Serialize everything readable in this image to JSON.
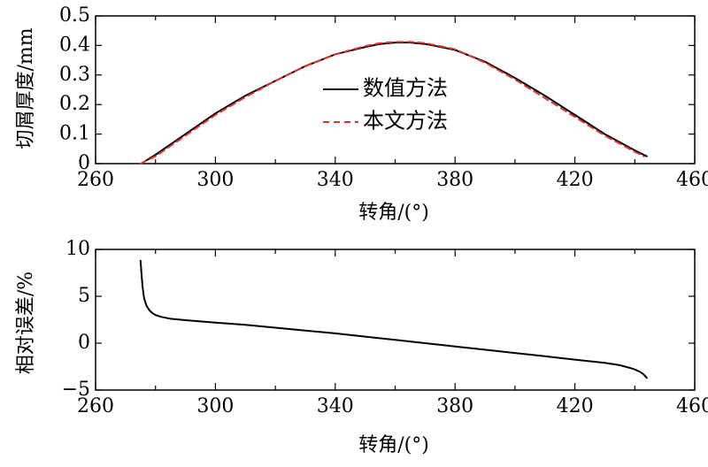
{
  "chart_data": [
    {
      "type": "line",
      "title": "",
      "xlabel": "转角/(°)",
      "ylabel": "切屑厚度/mm",
      "xlim": [
        260,
        460
      ],
      "ylim": [
        0,
        0.5
      ],
      "xticks": [
        "260",
        "300",
        "340",
        "380",
        "420",
        "460"
      ],
      "yticks": [
        "0",
        "0.1",
        "0.2",
        "0.3",
        "0.4",
        "0.5"
      ],
      "legend_position": "center",
      "series": [
        {
          "name": "数值方法",
          "color": "#000000",
          "style": "solid",
          "x": [
            276,
            280,
            290,
            300,
            310,
            320,
            330,
            340,
            350,
            355,
            360,
            365,
            370,
            380,
            390,
            400,
            410,
            420,
            430,
            440,
            444
          ],
          "y": [
            0.005,
            0.03,
            0.1,
            0.17,
            0.23,
            0.28,
            0.33,
            0.37,
            0.395,
            0.405,
            0.41,
            0.41,
            0.405,
            0.385,
            0.345,
            0.29,
            0.23,
            0.165,
            0.1,
            0.045,
            0.025
          ]
        },
        {
          "name": "本文方法",
          "color": "#e03030",
          "style": "dashed",
          "x": [
            275,
            280,
            290,
            300,
            310,
            320,
            330,
            340,
            350,
            355,
            360,
            365,
            370,
            380,
            390,
            400,
            410,
            420,
            430,
            440,
            443
          ],
          "y": [
            0.0,
            0.025,
            0.095,
            0.165,
            0.225,
            0.28,
            0.33,
            0.37,
            0.398,
            0.408,
            0.412,
            0.412,
            0.408,
            0.387,
            0.342,
            0.285,
            0.222,
            0.158,
            0.095,
            0.04,
            0.025
          ]
        }
      ]
    },
    {
      "type": "line",
      "title": "",
      "xlabel": "转角/(°)",
      "ylabel": "相对误差/%",
      "xlim": [
        260,
        460
      ],
      "ylim": [
        -5,
        10
      ],
      "xticks": [
        "260",
        "300",
        "340",
        "380",
        "420",
        "460"
      ],
      "yticks": [
        "10",
        "5",
        "0",
        "−5"
      ],
      "series": [
        {
          "name": "",
          "color": "#000000",
          "style": "solid",
          "x": [
            275,
            275.3,
            275.7,
            276.2,
            277,
            278,
            279,
            280,
            282,
            285,
            290,
            300,
            310,
            320,
            330,
            340,
            350,
            360,
            370,
            380,
            390,
            400,
            410,
            420,
            430,
            435,
            438,
            440,
            442,
            443,
            444
          ],
          "y": [
            8.8,
            7.5,
            6.0,
            4.8,
            4.0,
            3.5,
            3.2,
            3.0,
            2.8,
            2.6,
            2.45,
            2.2,
            1.95,
            1.65,
            1.35,
            1.05,
            0.7,
            0.35,
            0.0,
            -0.35,
            -0.7,
            -1.05,
            -1.4,
            -1.75,
            -2.1,
            -2.35,
            -2.6,
            -2.8,
            -3.1,
            -3.35,
            -3.7
          ]
        }
      ]
    }
  ]
}
